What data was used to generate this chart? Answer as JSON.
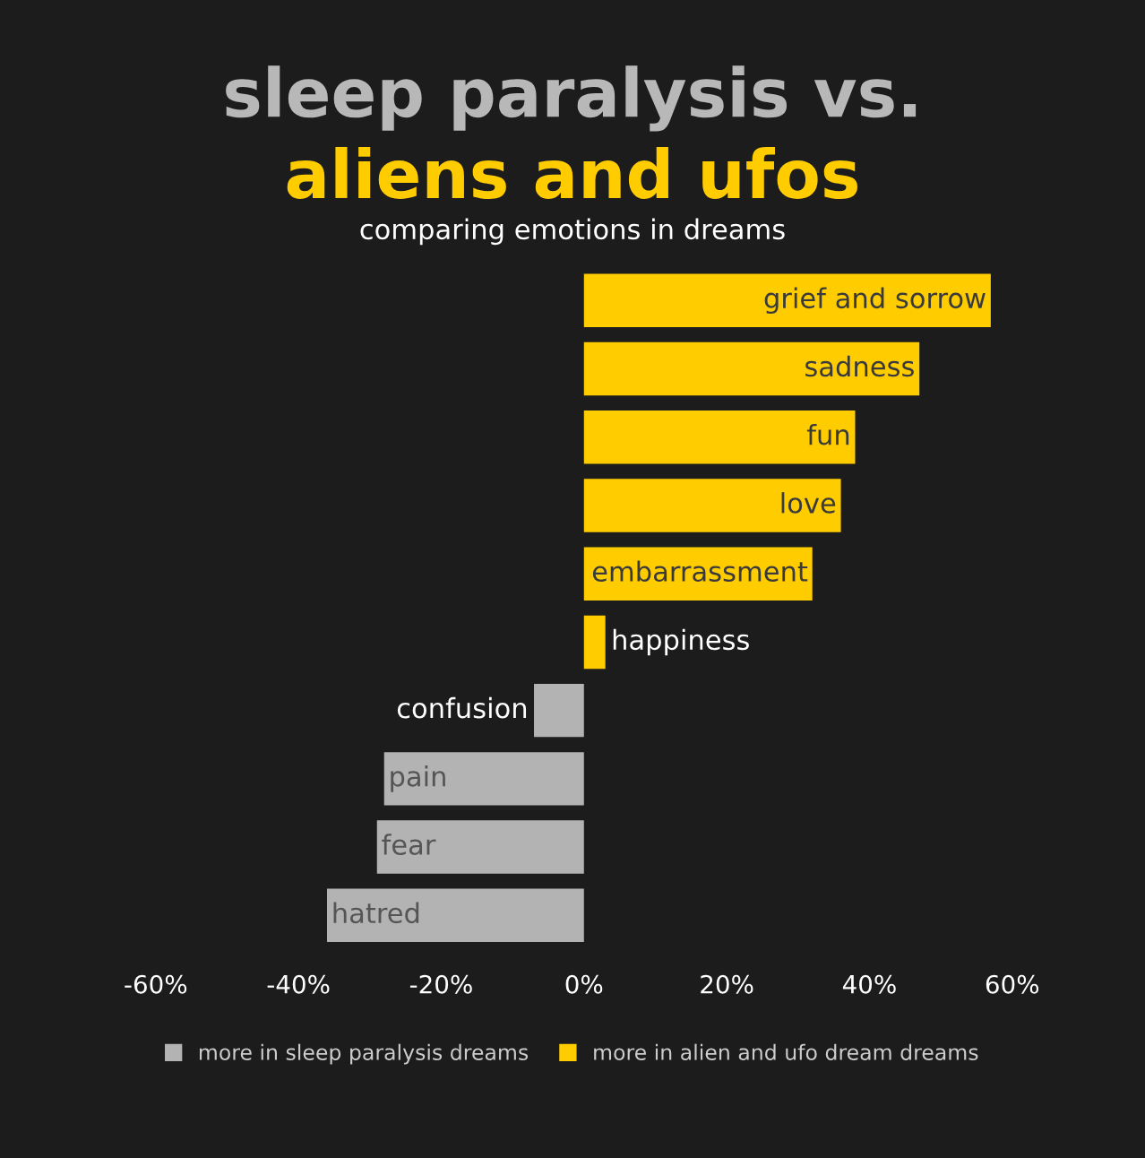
{
  "chart_data": {
    "type": "bar",
    "orientation": "horizontal",
    "title": "sleep paralysis vs.\naliens and ufos",
    "subtitle": "comparing emotions in dreams",
    "categories": [
      "grief and sorrow",
      "sadness",
      "fun",
      "love",
      "embarrassment",
      "happiness",
      "confusion",
      "pain",
      "fear",
      "hatred"
    ],
    "series": [
      {
        "name": "more in sleep paralysis dreams",
        "color": "#b3b3b3",
        "values": [
          null,
          null,
          null,
          null,
          null,
          null,
          -7,
          -28,
          -29,
          -36
        ]
      },
      {
        "name": "more in alien and ufo dream dreams",
        "color": "#ffcc00",
        "values": [
          57,
          47,
          38,
          36,
          32,
          3,
          null,
          null,
          null,
          null
        ]
      }
    ],
    "xlim": [
      -60,
      60
    ],
    "xticks": [
      {
        "value": -60,
        "label": "-60%"
      },
      {
        "value": -40,
        "label": "-40%"
      },
      {
        "value": -20,
        "label": "-20%"
      },
      {
        "value": 0,
        "label": "0%"
      },
      {
        "value": 20,
        "label": "20%"
      },
      {
        "value": 40,
        "label": "40%"
      },
      {
        "value": 60,
        "label": "60%"
      }
    ],
    "grid": false,
    "legend": "bottom"
  }
}
